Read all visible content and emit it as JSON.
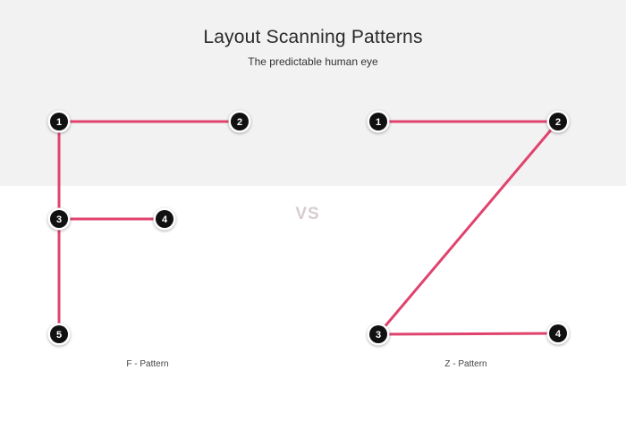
{
  "header": {
    "title": "Layout Scanning Patterns",
    "subtitle": "The predictable human eye"
  },
  "divider_text": "VS",
  "colors": {
    "line": "#e0436d",
    "node_fill": "#111111",
    "node_ring": "#ffffff",
    "top_band": "#f2f2f2"
  },
  "patterns": [
    {
      "name": "F - Pattern",
      "nodes": [
        "1",
        "2",
        "3",
        "4",
        "5"
      ],
      "path": "1 → 2, 1 → 5, 3 → 4"
    },
    {
      "name": "Z - Pattern",
      "nodes": [
        "1",
        "2",
        "3",
        "4"
      ],
      "path": "1 → 2 → 3 → 4"
    }
  ]
}
